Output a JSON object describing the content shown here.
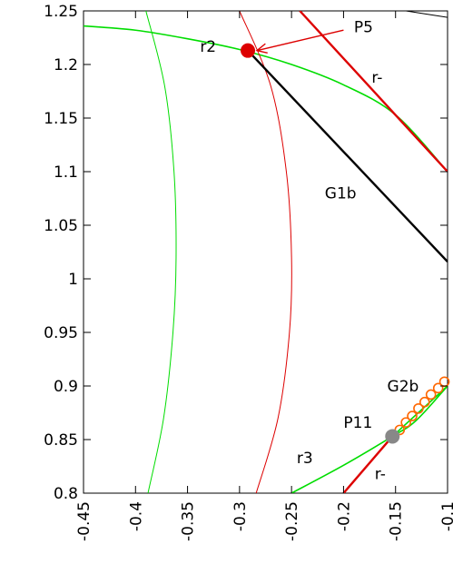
{
  "chart_data": {
    "type": "line",
    "title": "",
    "xlabel": "",
    "ylabel": "",
    "xlim": [
      -0.45,
      -0.1
    ],
    "ylim": [
      0.8,
      1.25
    ],
    "grid": false,
    "x_ticks": [
      "-0.45",
      "-0.4",
      "-0.35",
      "-0.3",
      "-0.25",
      "-0.2",
      "-0.15",
      "-0.1"
    ],
    "y_ticks": [
      "1.25",
      "1.2",
      "1.15",
      "1.1",
      "1.05",
      "1",
      "0.95",
      "0.9",
      "0.85",
      "0.8"
    ],
    "colors": {
      "green": "#00dd00",
      "red": "#dd0000",
      "black": "#000000",
      "orange": "#ff6600",
      "gray": "#888888"
    },
    "series": [
      {
        "label": "r2",
        "color": "#00dd00",
        "width": 1.6,
        "points": [
          [
            -0.45,
            1.236
          ],
          [
            -0.4,
            1.232
          ],
          [
            -0.35,
            1.224
          ],
          [
            -0.3,
            1.214
          ],
          [
            -0.25,
            1.2
          ],
          [
            -0.2,
            1.181
          ],
          [
            -0.15,
            1.153
          ],
          [
            -0.1,
            1.1
          ]
        ]
      },
      {
        "label": "",
        "color": "#00dd00",
        "width": 1.0,
        "points": [
          [
            -0.39,
            1.25
          ],
          [
            -0.372,
            1.18
          ],
          [
            -0.363,
            1.1
          ],
          [
            -0.361,
            1.02
          ],
          [
            -0.364,
            0.95
          ],
          [
            -0.373,
            0.87
          ],
          [
            -0.388,
            0.8
          ]
        ]
      },
      {
        "label": "",
        "color": "#dd0000",
        "width": 1.0,
        "points": [
          [
            -0.3,
            1.25
          ],
          [
            -0.27,
            1.18
          ],
          [
            -0.255,
            1.1
          ],
          [
            -0.25,
            1.02
          ],
          [
            -0.252,
            0.95
          ],
          [
            -0.263,
            0.87
          ],
          [
            -0.284,
            0.8
          ]
        ]
      },
      {
        "label": "r-",
        "color": "#dd0000",
        "width": 2.4,
        "points": [
          [
            -0.242,
            1.25
          ],
          [
            -0.1,
            1.1
          ]
        ]
      },
      {
        "label": "G1b",
        "color": "#000000",
        "width": 2.4,
        "points": [
          [
            -0.292,
            1.213
          ],
          [
            -0.1,
            1.016
          ]
        ]
      },
      {
        "label": "r3",
        "color": "#00dd00",
        "width": 1.6,
        "points": [
          [
            -0.25,
            0.8
          ],
          [
            -0.2,
            0.826
          ],
          [
            -0.153,
            0.853
          ],
          [
            -0.13,
            0.868
          ],
          [
            -0.1,
            0.9
          ]
        ]
      },
      {
        "label": "r-",
        "color": "#dd0000",
        "width": 2.4,
        "points": [
          [
            -0.2,
            0.8
          ],
          [
            -0.153,
            0.853
          ]
        ]
      },
      {
        "label": "G2b",
        "color": "#00dd00",
        "width": 1.6,
        "points": [
          [
            -0.153,
            0.853
          ],
          [
            -0.1,
            0.9
          ]
        ]
      },
      {
        "label": "",
        "color": "#000000",
        "width": 1.0,
        "points": [
          [
            -0.14,
            1.25
          ],
          [
            -0.1,
            1.244
          ]
        ]
      }
    ],
    "markers": [
      {
        "name": "P5",
        "x": -0.292,
        "y": 1.213,
        "color": "#dd0000"
      },
      {
        "name": "P11",
        "x": -0.153,
        "y": 0.853,
        "color": "#888888"
      }
    ],
    "orange_circles": [
      [
        -0.146,
        0.859
      ],
      [
        -0.14,
        0.866
      ],
      [
        -0.134,
        0.872
      ],
      [
        -0.128,
        0.879
      ],
      [
        -0.122,
        0.885
      ],
      [
        -0.116,
        0.892
      ],
      [
        -0.109,
        0.898
      ],
      [
        -0.103,
        0.904
      ]
    ],
    "annotations": [
      {
        "text": "r2",
        "x": -0.338,
        "y": 1.212
      },
      {
        "text": "P5",
        "x": -0.19,
        "y": 1.23
      },
      {
        "text": "r-",
        "x": -0.173,
        "y": 1.183
      },
      {
        "text": "G1b",
        "x": -0.218,
        "y": 1.075
      },
      {
        "text": "G2b",
        "x": -0.158,
        "y": 0.895
      },
      {
        "text": "P11",
        "x": -0.2,
        "y": 0.861
      },
      {
        "text": "r3",
        "x": -0.245,
        "y": 0.828
      },
      {
        "text": "r-",
        "x": -0.17,
        "y": 0.813
      }
    ]
  }
}
